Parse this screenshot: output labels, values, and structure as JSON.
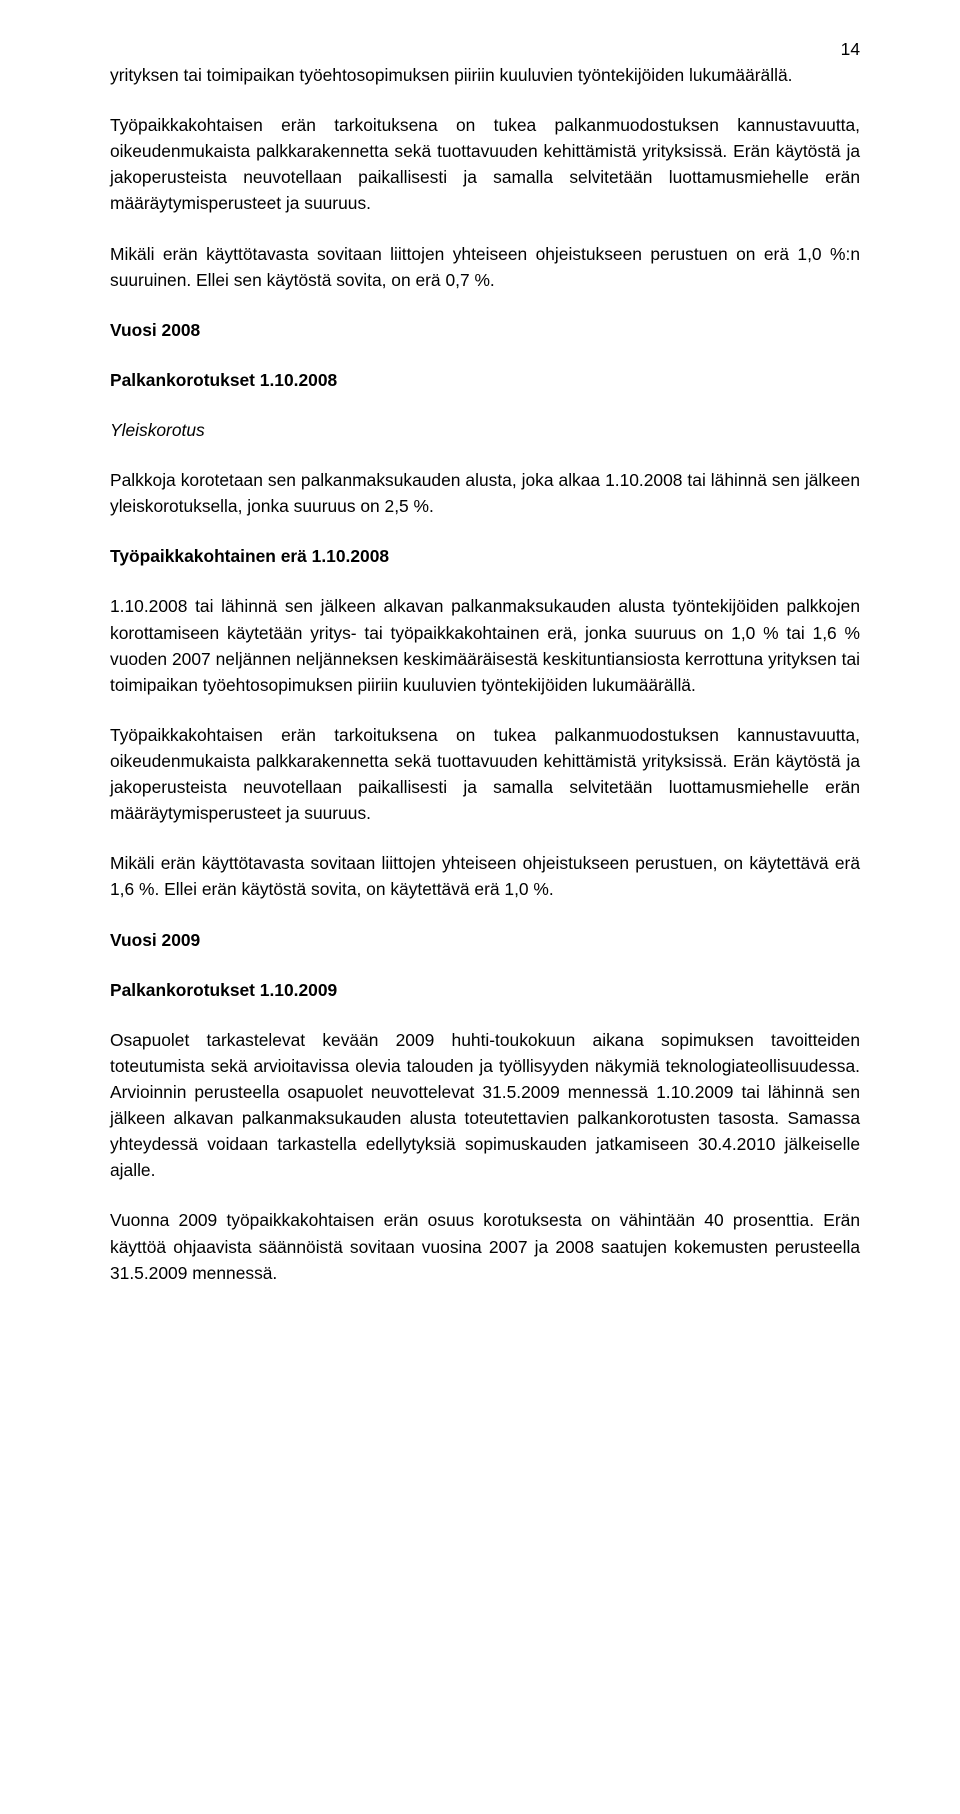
{
  "page_number": "14",
  "paragraphs": {
    "p1": "yrityksen tai toimipaikan työehtosopimuksen piiriin kuuluvien työntekijöiden lukumäärällä.",
    "p2": "Työpaikkakohtaisen erän tarkoituksena on tukea palkanmuodostuksen kannustavuutta, oikeudenmukaista palkkarakennetta sekä tuottavuuden kehittämistä yrityksissä. Erän käytöstä ja jakoperusteista neuvotellaan paikallisesti ja samalla selvitetään luottamusmiehelle erän määräytymisperusteet ja suuruus.",
    "p3": "Mikäli erän käyttötavasta sovitaan liittojen yhteiseen ohjeistukseen perustuen on erä 1,0 %:n suuruinen. Ellei sen käytöstä sovita, on erä 0,7 %.",
    "h_vuosi2008": "Vuosi 2008",
    "h_palkankorotukset2008": "Palkankorotukset 1.10.2008",
    "h_yleiskorotus": "Yleiskorotus",
    "p4": "Palkkoja korotetaan sen palkanmaksukauden alusta, joka alkaa 1.10.2008 tai lähinnä sen jälkeen yleiskorotuksella, jonka suuruus on 2,5 %.",
    "h_tyopaikkakohtainen": "Työpaikkakohtainen erä 1.10.2008",
    "p5": "1.10.2008 tai lähinnä sen jälkeen alkavan palkanmaksukauden alusta työntekijöiden palkkojen korottamiseen käytetään yritys- tai työpaikkakohtainen erä, jonka suuruus on 1,0 % tai 1,6 % vuoden 2007 neljännen neljänneksen keskimääräisestä keskituntiansiosta kerrottuna yrityksen tai toimipaikan työehtosopimuksen piiriin kuuluvien työntekijöiden lukumäärällä.",
    "p6": "Työpaikkakohtaisen erän tarkoituksena on tukea palkanmuodostuksen kannustavuutta, oikeudenmukaista palkkarakennetta sekä tuottavuuden kehittämistä yrityksissä. Erän käytöstä ja jakoperusteista neuvotellaan paikallisesti ja samalla selvitetään luottamusmiehelle erän määräytymisperusteet ja suuruus.",
    "p7": "Mikäli erän käyttötavasta sovitaan liittojen yhteiseen ohjeistukseen perustuen, on käytettävä erä 1,6 %. Ellei erän käytöstä sovita, on käytettävä erä 1,0 %.",
    "h_vuosi2009": "Vuosi 2009",
    "h_palkankorotukset2009": "Palkankorotukset 1.10.2009",
    "p8": "Osapuolet tarkastelevat kevään 2009 huhti-toukokuun aikana sopimuksen tavoitteiden toteutumista sekä arvioitavissa olevia talouden ja työllisyyden näkymiä teknologiateollisuudessa. Arvioinnin perusteella osapuolet neuvottelevat 31.5.2009 mennessä 1.10.2009 tai lähinnä sen jälkeen alkavan palkanmaksukauden alusta toteutettavien palkankorotusten tasosta. Samassa yhteydessä voidaan tarkastella edellytyksiä sopimuskauden jatkamiseen 30.4.2010 jälkeiselle ajalle.",
    "p9": "Vuonna 2009 työpaikkakohtaisen erän osuus korotuksesta on vähintään 40 prosenttia. Erän käyttöä ohjaavista säännöistä sovitaan vuosina 2007 ja 2008 saatujen kokemusten perusteella 31.5.2009 mennessä."
  }
}
